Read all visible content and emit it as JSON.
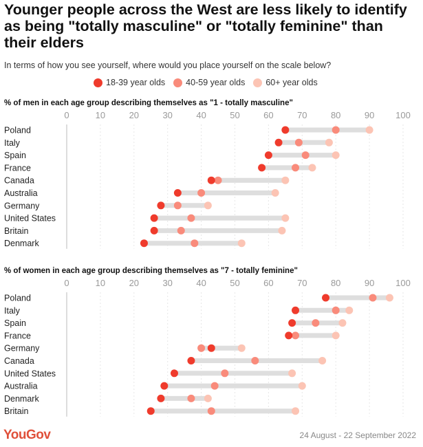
{
  "title": "Younger people across the West are less likely to identify as being \"totally masculine\" or \"totally feminine\" than their elders",
  "subtitle": "In terms of how you see yourself, where would you place yourself on the scale below?",
  "legend": [
    {
      "label": "18-39 year olds",
      "color": "#ef3b2c"
    },
    {
      "label": "40-59 year olds",
      "color": "#f98b7b"
    },
    {
      "label": "60+ year olds",
      "color": "#fcc4b4"
    }
  ],
  "footer": {
    "brand": "YouGov",
    "dates": "24 August - 22 September 2022"
  },
  "chart_data": [
    {
      "type": "scatter",
      "title": "% of men in each age group describing themselves as \"1 - totally masculine\"",
      "xlim": [
        0,
        100
      ],
      "ticks": [
        "0",
        "10",
        "20",
        "30",
        "40",
        "50",
        "60",
        "70",
        "80",
        "90",
        "100"
      ],
      "categories": [
        "Poland",
        "Italy",
        "Spain",
        "France",
        "Canada",
        "Australia",
        "Germany",
        "United States",
        "Britain",
        "Denmark"
      ],
      "series": [
        {
          "name": "18-39 year olds",
          "values": [
            65,
            63,
            60,
            58,
            43,
            33,
            28,
            26,
            26,
            23
          ]
        },
        {
          "name": "40-59 year olds",
          "values": [
            80,
            69,
            71,
            68,
            45,
            40,
            33,
            37,
            34,
            38
          ]
        },
        {
          "name": "60+ year olds",
          "values": [
            90,
            78,
            80,
            73,
            65,
            62,
            42,
            65,
            64,
            52
          ]
        }
      ]
    },
    {
      "type": "scatter",
      "title": "% of women in each age group describing themselves as \"7 - totally feminine\"",
      "xlim": [
        0,
        100
      ],
      "ticks": [
        "0",
        "10",
        "20",
        "30",
        "40",
        "50",
        "60",
        "70",
        "80",
        "90",
        "100"
      ],
      "categories": [
        "Poland",
        "Italy",
        "Spain",
        "France",
        "Germany",
        "Canada",
        "United States",
        "Australia",
        "Denmark",
        "Britain"
      ],
      "series": [
        {
          "name": "18-39 year olds",
          "values": [
            77,
            68,
            67,
            66,
            43,
            37,
            32,
            29,
            28,
            25
          ]
        },
        {
          "name": "40-59 year olds",
          "values": [
            91,
            80,
            74,
            68,
            40,
            56,
            47,
            44,
            37,
            43
          ]
        },
        {
          "name": "60+ year olds",
          "values": [
            96,
            84,
            82,
            80,
            52,
            76,
            67,
            70,
            42,
            68
          ]
        }
      ]
    }
  ]
}
